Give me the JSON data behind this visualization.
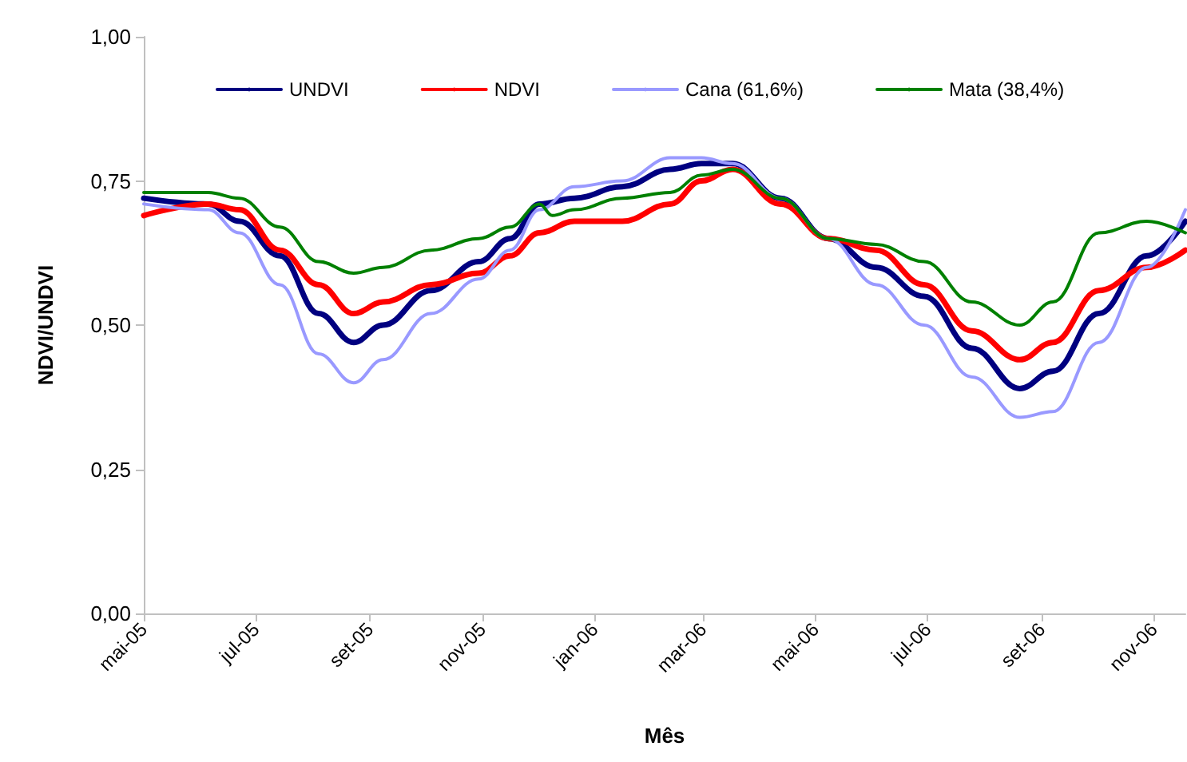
{
  "chart_data": {
    "type": "line",
    "xlabel": "Mês",
    "ylabel": "NDVI/UNDVI",
    "x": [
      "2005-05-01",
      "2005-06-05",
      "2005-06-22",
      "2005-07-14",
      "2005-08-04",
      "2005-08-23",
      "2005-09-08",
      "2005-10-04",
      "2005-10-30",
      "2005-11-16",
      "2005-12-02",
      "2005-12-21",
      "2006-01-16",
      "2006-02-11",
      "2006-02-28",
      "2006-03-17",
      "2006-04-12",
      "2006-05-08",
      "2006-06-03",
      "2006-06-29",
      "2006-07-25",
      "2006-08-20",
      "2006-09-07",
      "2006-10-02",
      "2006-10-28",
      "2006-11-18"
    ],
    "series": [
      {
        "name": "UNDVI",
        "color": "#000080",
        "values": [
          0.72,
          0.71,
          0.68,
          0.62,
          0.52,
          0.47,
          0.5,
          0.56,
          0.61,
          0.65,
          0.71,
          0.72,
          0.74,
          0.77,
          0.78,
          0.78,
          0.72,
          0.65,
          0.6,
          0.55,
          0.46,
          0.39,
          0.42,
          0.52,
          0.62,
          0.68
        ]
      },
      {
        "name": "NDVI",
        "color": "#ff0000",
        "values": [
          0.69,
          0.71,
          0.7,
          0.63,
          0.57,
          0.52,
          0.54,
          0.57,
          0.59,
          0.62,
          0.66,
          0.68,
          0.68,
          0.71,
          0.75,
          0.77,
          0.71,
          0.65,
          0.63,
          0.57,
          0.49,
          0.44,
          0.47,
          0.56,
          0.6,
          0.63
        ]
      },
      {
        "name": "Cana (61,6%)",
        "color": "#9999ff",
        "values": [
          0.71,
          0.7,
          0.66,
          0.57,
          0.45,
          0.4,
          0.44,
          0.52,
          0.58,
          0.63,
          0.7,
          0.74,
          0.75,
          0.79,
          0.79,
          0.78,
          0.72,
          0.65,
          0.57,
          0.5,
          0.41,
          0.34,
          0.35,
          0.47,
          0.6,
          0.7
        ]
      },
      {
        "name": "Mata (38,4%)",
        "color": "#008000",
        "x": [
          "2005-05-01",
          "2005-06-05",
          "2005-06-22",
          "2005-07-14",
          "2005-08-04",
          "2005-08-23",
          "2005-09-08",
          "2005-10-04",
          "2005-10-30",
          "2005-11-16",
          "2005-12-02",
          "2005-12-09",
          "2005-12-21",
          "2006-01-16",
          "2006-02-11",
          "2006-02-28",
          "2006-03-17",
          "2006-04-12",
          "2006-05-08",
          "2006-06-03",
          "2006-06-29",
          "2006-07-25",
          "2006-08-20",
          "2006-09-07",
          "2006-10-02",
          "2006-10-28",
          "2006-11-18"
        ],
        "values": [
          0.73,
          0.73,
          0.72,
          0.67,
          0.61,
          0.59,
          0.6,
          0.63,
          0.65,
          0.67,
          0.71,
          0.69,
          0.7,
          0.72,
          0.73,
          0.76,
          0.77,
          0.72,
          0.65,
          0.64,
          0.61,
          0.54,
          0.5,
          0.54,
          0.66,
          0.68,
          0.66
        ]
      }
    ],
    "xlim": [
      "2005-05-01",
      "2006-11-18"
    ],
    "xticks": [
      {
        "value": "2005-05-01",
        "label": "mai-05"
      },
      {
        "value": "2005-07-01",
        "label": "jul-05"
      },
      {
        "value": "2005-09-01",
        "label": "set-05"
      },
      {
        "value": "2005-11-01",
        "label": "nov-05"
      },
      {
        "value": "2006-01-01",
        "label": "jan-06"
      },
      {
        "value": "2006-03-01",
        "label": "mar-06"
      },
      {
        "value": "2006-05-01",
        "label": "mai-06"
      },
      {
        "value": "2006-07-01",
        "label": "jul-06"
      },
      {
        "value": "2006-09-01",
        "label": "set-06"
      },
      {
        "value": "2006-11-01",
        "label": "nov-06"
      }
    ],
    "ylim": [
      0,
      1
    ],
    "yticks": [
      {
        "value": 0,
        "label": "0,00"
      },
      {
        "value": 0.25,
        "label": "0,25"
      },
      {
        "value": 0.5,
        "label": "0,50"
      },
      {
        "value": 0.75,
        "label": "0,75"
      },
      {
        "value": 1,
        "label": "1,00"
      }
    ],
    "legend": "top",
    "marker": "none",
    "line_style": "solid",
    "grid": false
  }
}
